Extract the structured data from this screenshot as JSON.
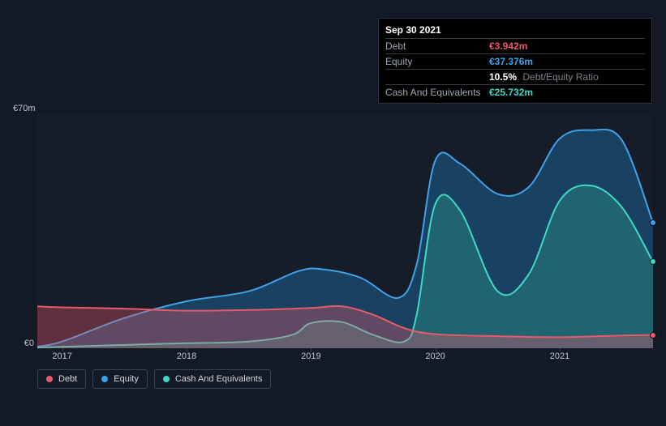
{
  "tooltip": {
    "date": "Sep 30 2021",
    "rows": [
      {
        "label": "Debt",
        "value": "€3.942m",
        "color": "#e85a6a"
      },
      {
        "label": "Equity",
        "value": "€37.376m",
        "color": "#3ea2e8"
      },
      {
        "label": "",
        "ratio_pct": "10.5%",
        "ratio_label": "Debt/Equity Ratio"
      },
      {
        "label": "Cash And Equivalents",
        "value": "€25.732m",
        "color": "#3fd9c4"
      }
    ]
  },
  "chart": {
    "type": "area",
    "background_color": "#161d29",
    "page_background": "#131a25",
    "grid_color": "#2a3240",
    "text_color": "#c0c5cc",
    "y_axis": {
      "max": 70,
      "min": 0,
      "labels": [
        {
          "v": 70,
          "text": "€70m"
        },
        {
          "v": 0,
          "text": "€0"
        }
      ]
    },
    "x_axis": {
      "min": 2016.8,
      "max": 2021.75,
      "ticks": [
        {
          "v": 2017,
          "text": "2017"
        },
        {
          "v": 2018,
          "text": "2018"
        },
        {
          "v": 2019,
          "text": "2019"
        },
        {
          "v": 2020,
          "text": "2020"
        },
        {
          "v": 2021,
          "text": "2021"
        }
      ]
    },
    "series": [
      {
        "name": "Debt",
        "stroke": "#e85a6a",
        "fill": "#e85a6a",
        "fill_opacity": 0.35,
        "stroke_width": 2,
        "points": [
          [
            2016.8,
            12.5
          ],
          [
            2017.0,
            12.2
          ],
          [
            2017.5,
            11.8
          ],
          [
            2018.0,
            11.2
          ],
          [
            2018.5,
            11.4
          ],
          [
            2019.0,
            12.0
          ],
          [
            2019.25,
            12.5
          ],
          [
            2019.5,
            10.0
          ],
          [
            2019.75,
            6.0
          ],
          [
            2020.0,
            4.2
          ],
          [
            2020.5,
            3.6
          ],
          [
            2021.0,
            3.3
          ],
          [
            2021.5,
            3.8
          ],
          [
            2021.75,
            3.942
          ]
        ]
      },
      {
        "name": "Equity",
        "stroke": "#3ea2e8",
        "fill": "#1e5f91",
        "fill_opacity": 0.55,
        "stroke_width": 2,
        "points": [
          [
            2016.8,
            0.5
          ],
          [
            2017.0,
            2.0
          ],
          [
            2017.5,
            9.0
          ],
          [
            2018.0,
            14.0
          ],
          [
            2018.5,
            17.0
          ],
          [
            2018.9,
            23.0
          ],
          [
            2019.1,
            23.5
          ],
          [
            2019.4,
            21.0
          ],
          [
            2019.7,
            15.0
          ],
          [
            2019.85,
            25.0
          ],
          [
            2020.0,
            56.0
          ],
          [
            2020.2,
            55.0
          ],
          [
            2020.5,
            46.0
          ],
          [
            2020.75,
            48.0
          ],
          [
            2021.0,
            62.5
          ],
          [
            2021.25,
            65.0
          ],
          [
            2021.5,
            62.0
          ],
          [
            2021.75,
            37.376
          ]
        ]
      },
      {
        "name": "Cash And Equivalents",
        "stroke": "#3fd9c4",
        "fill": "#2a8f85",
        "fill_opacity": 0.45,
        "stroke_width": 2,
        "points": [
          [
            2016.8,
            0.2
          ],
          [
            2017.5,
            1.0
          ],
          [
            2018.0,
            1.5
          ],
          [
            2018.5,
            2.0
          ],
          [
            2018.85,
            4.0
          ],
          [
            2019.0,
            7.5
          ],
          [
            2019.25,
            7.8
          ],
          [
            2019.5,
            4.0
          ],
          [
            2019.75,
            2.0
          ],
          [
            2019.85,
            10.0
          ],
          [
            2020.0,
            43.0
          ],
          [
            2020.2,
            41.0
          ],
          [
            2020.5,
            17.0
          ],
          [
            2020.75,
            22.0
          ],
          [
            2021.0,
            44.0
          ],
          [
            2021.25,
            48.5
          ],
          [
            2021.5,
            42.0
          ],
          [
            2021.75,
            25.732
          ]
        ]
      }
    ],
    "legend": [
      {
        "label": "Debt",
        "color": "#e85a6a"
      },
      {
        "label": "Equity",
        "color": "#3ea2e8"
      },
      {
        "label": "Cash And Equivalents",
        "color": "#3fd9c4"
      }
    ]
  }
}
